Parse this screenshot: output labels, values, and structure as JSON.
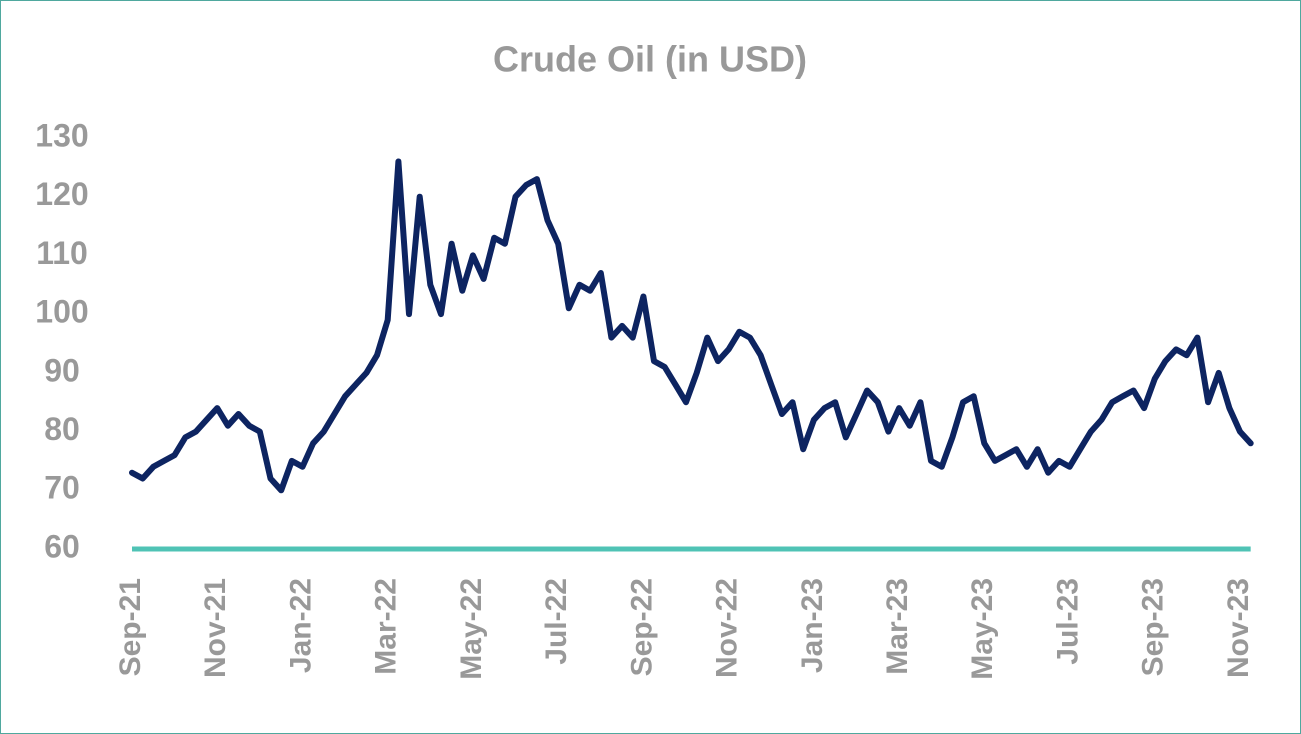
{
  "chart_data": {
    "type": "line",
    "title": "Crude Oil (in USD)",
    "categories": [
      "Sep-21",
      null,
      null,
      null,
      null,
      null,
      null,
      null,
      "Nov-21",
      null,
      null,
      null,
      null,
      null,
      null,
      null,
      "Jan-22",
      null,
      null,
      null,
      null,
      null,
      null,
      null,
      "Mar-22",
      null,
      null,
      null,
      null,
      null,
      null,
      null,
      "May-22",
      null,
      null,
      null,
      null,
      null,
      null,
      null,
      "Jul-22",
      null,
      null,
      null,
      null,
      null,
      null,
      null,
      "Sep-22",
      null,
      null,
      null,
      null,
      null,
      null,
      null,
      "Nov-22",
      null,
      null,
      null,
      null,
      null,
      null,
      null,
      "Jan-23",
      null,
      null,
      null,
      null,
      null,
      null,
      null,
      "Mar-23",
      null,
      null,
      null,
      null,
      null,
      null,
      null,
      "May-23",
      null,
      null,
      null,
      null,
      null,
      null,
      null,
      "Jul-23",
      null,
      null,
      null,
      null,
      null,
      null,
      null,
      "Sep-23",
      null,
      null,
      null,
      null,
      null,
      null,
      null,
      "Nov-23",
      null
    ],
    "values": [
      73,
      72,
      74,
      75,
      76,
      79,
      80,
      82,
      84,
      81,
      83,
      81,
      80,
      72,
      70,
      75,
      74,
      78,
      80,
      83,
      86,
      88,
      90,
      93,
      99,
      126,
      100,
      120,
      105,
      100,
      112,
      104,
      110,
      106,
      113,
      112,
      120,
      122,
      123,
      116,
      112,
      101,
      105,
      104,
      107,
      96,
      98,
      96,
      103,
      92,
      91,
      88,
      85,
      90,
      96,
      92,
      94,
      97,
      96,
      93,
      88,
      83,
      85,
      77,
      82,
      84,
      85,
      79,
      83,
      87,
      85,
      80,
      84,
      81,
      85,
      75,
      74,
      79,
      85,
      86,
      78,
      75,
      76,
      77,
      74,
      77,
      73,
      75,
      74,
      77,
      80,
      82,
      85,
      86,
      87,
      84,
      89,
      92,
      94,
      93,
      96,
      85,
      90,
      84,
      80,
      78
    ],
    "color": "#0d2461",
    "axis_color": "#4fc3b5",
    "ylim": [
      60,
      130
    ],
    "yticks": [
      60,
      70,
      80,
      90,
      100,
      110,
      120,
      130
    ],
    "grid": false
  }
}
